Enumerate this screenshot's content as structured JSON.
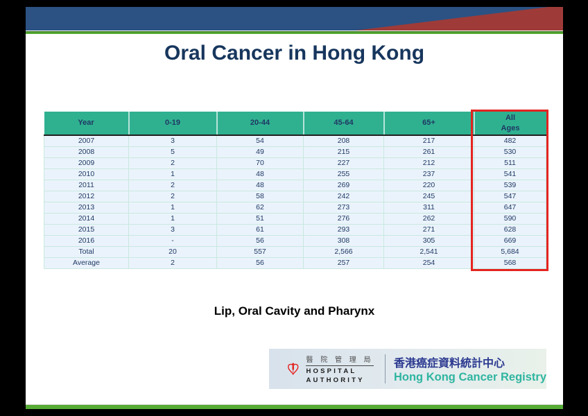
{
  "slide": {
    "title": "Oral Cancer in Hong Kong",
    "subtitle": "Lip, Oral Cavity and Pharynx"
  },
  "table": {
    "columns": [
      "Year",
      "0-19",
      "20-44",
      "45-64",
      "65+",
      "All\nAges"
    ],
    "rows": [
      [
        "2007",
        "3",
        "54",
        "208",
        "217",
        "482"
      ],
      [
        "2008",
        "5",
        "49",
        "215",
        "261",
        "530"
      ],
      [
        "2009",
        "2",
        "70",
        "227",
        "212",
        "511"
      ],
      [
        "2010",
        "1",
        "48",
        "255",
        "237",
        "541"
      ],
      [
        "2011",
        "2",
        "48",
        "269",
        "220",
        "539"
      ],
      [
        "2012",
        "2",
        "58",
        "242",
        "245",
        "547"
      ],
      [
        "2013",
        "1",
        "62",
        "273",
        "311",
        "647"
      ],
      [
        "2014",
        "1",
        "51",
        "276",
        "262",
        "590"
      ],
      [
        "2015",
        "3",
        "61",
        "293",
        "271",
        "628"
      ],
      [
        "2016",
        "-",
        "56",
        "308",
        "305",
        "669"
      ],
      [
        "Total",
        "20",
        "557",
        "2,566",
        "2,541",
        "5,684"
      ],
      [
        "Average",
        "2",
        "56",
        "257",
        "254",
        "568"
      ]
    ],
    "highlighted_column": "All Ages"
  },
  "logo": {
    "heart_icon": "hospital-authority-heart-icon",
    "ha_chinese": "醫 院 管 理 局",
    "ha_english_line1": "HOSPITAL",
    "ha_english_line2": "AUTHORITY",
    "registry_chinese": "香港癌症資料統計中心",
    "registry_english": "Hong Kong Cancer Registry"
  },
  "colors": {
    "banner_blue": "#2B5283",
    "wedge_red": "#9E3B38",
    "green_accent": "#55AB34",
    "table_header_teal": "#2FB190",
    "table_text_navy": "#1F3864",
    "row_background": "#EAF3FB",
    "highlight_red": "#E52320",
    "title_navy": "#17365D",
    "registry_navy": "#2B3990",
    "registry_teal": "#2FB5A0"
  },
  "chart_data": {
    "type": "table",
    "title": "Oral Cancer in Hong Kong",
    "subtitle": "Lip, Oral Cavity and Pharynx",
    "columns": [
      "Year",
      "0-19",
      "20-44",
      "45-64",
      "65+",
      "All Ages"
    ],
    "rows": [
      [
        "2007",
        3,
        54,
        208,
        217,
        482
      ],
      [
        "2008",
        5,
        49,
        215,
        261,
        530
      ],
      [
        "2009",
        2,
        70,
        227,
        212,
        511
      ],
      [
        "2010",
        1,
        48,
        255,
        237,
        541
      ],
      [
        "2011",
        2,
        48,
        269,
        220,
        539
      ],
      [
        "2012",
        2,
        58,
        242,
        245,
        547
      ],
      [
        "2013",
        1,
        62,
        273,
        311,
        647
      ],
      [
        "2014",
        1,
        51,
        276,
        262,
        590
      ],
      [
        "2015",
        3,
        61,
        293,
        271,
        628
      ],
      [
        "2016",
        null,
        56,
        308,
        305,
        669
      ],
      [
        "Total",
        20,
        557,
        2566,
        2541,
        5684
      ],
      [
        "Average",
        2,
        56,
        257,
        254,
        568
      ]
    ],
    "annotations": [
      "All Ages column highlighted with red box"
    ]
  }
}
